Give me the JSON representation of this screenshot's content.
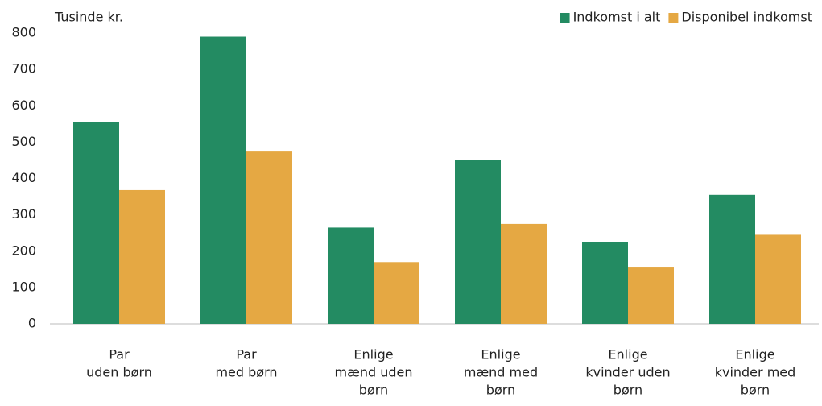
{
  "chart_data": {
    "type": "bar",
    "axis_label": "Tusinde kr.",
    "categories": [
      [
        "Par",
        "uden børn"
      ],
      [
        "Par",
        "med  børn"
      ],
      [
        "Enlige",
        "mænd uden",
        "børn"
      ],
      [
        "Enlige",
        "mænd med",
        "børn"
      ],
      [
        "Enlige",
        "kvinder uden",
        "børn"
      ],
      [
        "Enlige",
        "kvinder med",
        "børn"
      ]
    ],
    "series": [
      {
        "name": "Indkomst i alt",
        "color": "#238b62",
        "values": [
          555,
          790,
          265,
          450,
          225,
          355
        ]
      },
      {
        "name": "Disponibel  indkomst",
        "color": "#e5a843",
        "values": [
          368,
          474,
          170,
          275,
          155,
          245
        ]
      }
    ],
    "ylim": [
      0,
      800
    ],
    "yticks": [
      0,
      100,
      200,
      300,
      400,
      500,
      600,
      700,
      800
    ],
    "grid": false,
    "legend": "top-right"
  }
}
